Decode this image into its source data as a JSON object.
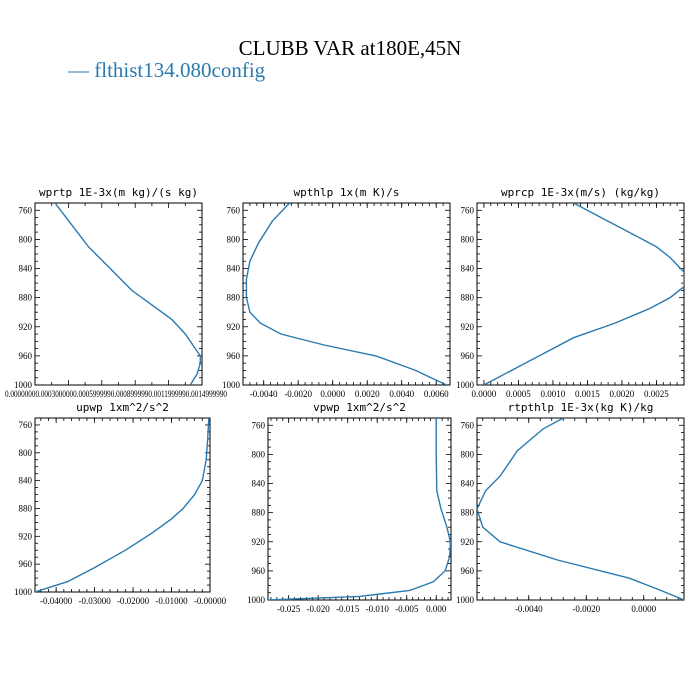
{
  "figure": {
    "title": "CLUBB VAR at180E,45N",
    "legend": {
      "dash": "—",
      "label": "flthist134.080config",
      "color": "#2a7ab0"
    }
  },
  "chart_data": [
    {
      "type": "line",
      "title": "wprtp  1E-3x(m kg)/(s kg)",
      "xlim": [
        0,
        9.99999e-07
      ],
      "ylim": [
        1000,
        750
      ],
      "y_reversed": true,
      "xticks": [],
      "xtick_labels": [],
      "xtick_label_text": "0.00000000.0003000000.0005999990.0008999990.0011999990.0014999990",
      "yticks": [
        760,
        800,
        840,
        880,
        920,
        960,
        1000
      ],
      "series": [
        {
          "color": "#2a7ab0",
          "x": [
            1.2e-07,
            2.2e-07,
            3.2e-07,
            4.5e-07,
            5.8e-07,
            7e-07,
            8.2e-07,
            9e-07,
            9.6e-07,
            9.9e-07,
            9.9e-07,
            9.7e-07,
            9.3e-07
          ],
          "y": [
            750,
            780,
            810,
            840,
            870,
            890,
            910,
            930,
            950,
            960,
            970,
            985,
            1000
          ]
        }
      ]
    },
    {
      "type": "line",
      "title": "wpthlp  1x(m K)/s",
      "xlim": [
        -0.0052,
        0.0068
      ],
      "ylim": [
        1000,
        750
      ],
      "y_reversed": true,
      "xticks": [
        -0.004,
        -0.002,
        0.0,
        0.002,
        0.004,
        0.006
      ],
      "xtick_labels": [
        "-0.0040",
        "-0.0020",
        "0.0000",
        "0.0020",
        "0.0040",
        "0.0060"
      ],
      "yticks": [
        760,
        800,
        840,
        880,
        920,
        960,
        1000
      ],
      "series": [
        {
          "color": "#2a7ab0",
          "x": [
            -0.0025,
            -0.0035,
            -0.0043,
            -0.0048,
            -0.005,
            -0.005,
            -0.0048,
            -0.0042,
            -0.003,
            -0.0005,
            0.0025,
            0.0048,
            0.0066
          ],
          "y": [
            750,
            775,
            805,
            830,
            855,
            880,
            900,
            915,
            930,
            945,
            960,
            980,
            1000
          ]
        }
      ]
    },
    {
      "type": "line",
      "title": "wprcp  1E-3x(m/s) (kg/kg)",
      "xlim": [
        -0.0001,
        0.0029
      ],
      "ylim": [
        1000,
        750
      ],
      "y_reversed": true,
      "xticks": [
        0.0,
        0.0005,
        0.001,
        0.0015,
        0.002,
        0.0025
      ],
      "xtick_labels": [
        "0.0000",
        "0.0005",
        "0.0010",
        "0.0015",
        "0.0020",
        "0.0025"
      ],
      "yticks": [
        760,
        800,
        840,
        880,
        920,
        960,
        1000
      ],
      "series": [
        {
          "color": "#2a7ab0",
          "x": [
            0.0013,
            0.0017,
            0.0021,
            0.0025,
            0.0027,
            0.0029,
            0.0029,
            0.0027,
            0.0024,
            0.0019,
            0.0013,
            0.0008,
            0.0
          ],
          "y": [
            750,
            770,
            790,
            810,
            825,
            845,
            865,
            880,
            895,
            915,
            935,
            960,
            1000
          ]
        }
      ]
    },
    {
      "type": "line",
      "title": "upwp  1xm^2/s^2",
      "xlim": [
        -0.0455,
        -0.0
      ],
      "ylim": [
        1000,
        750
      ],
      "y_reversed": true,
      "xticks": [
        -0.04,
        -0.03,
        -0.02,
        -0.01,
        0.0
      ],
      "xtick_labels": [
        "-0.04000",
        "-0.03000",
        "-0.02000",
        "-0.01000",
        "-0.00000"
      ],
      "yticks": [
        760,
        800,
        840,
        880,
        920,
        960,
        1000
      ],
      "series": [
        {
          "color": "#2a7ab0",
          "x": [
            -0.0003,
            -0.0006,
            -0.001,
            -0.002,
            -0.004,
            -0.007,
            -0.01,
            -0.015,
            -0.022,
            -0.03,
            -0.037,
            -0.0455
          ],
          "y": [
            750,
            780,
            810,
            840,
            860,
            880,
            895,
            915,
            940,
            965,
            985,
            1000
          ]
        }
      ]
    },
    {
      "type": "line",
      "title": "vpwp  1xm^2/s^2",
      "xlim": [
        -0.0285,
        0.0025
      ],
      "ylim": [
        1000,
        750
      ],
      "y_reversed": true,
      "xticks": [
        -0.025,
        -0.02,
        -0.015,
        -0.01,
        -0.005,
        0.0
      ],
      "xtick_labels": [
        "-0.025",
        "-0.020",
        "-0.015",
        "-0.010",
        "-0.005",
        "0.000"
      ],
      "yticks": [
        760,
        800,
        840,
        880,
        920,
        960,
        1000
      ],
      "series": [
        {
          "color": "#2a7ab0",
          "x": [
            0.0,
            0.0,
            0.0001,
            0.0008,
            0.0018,
            0.0024,
            0.0023,
            0.0015,
            -0.0005,
            -0.0045,
            -0.013,
            -0.0285
          ],
          "y": [
            750,
            800,
            850,
            875,
            900,
            920,
            940,
            960,
            975,
            987,
            995,
            1000
          ]
        }
      ]
    },
    {
      "type": "line",
      "title": "rtpthlp  1E-3x(kg K)/kg",
      "xlim": [
        -0.0058,
        0.0014
      ],
      "ylim": [
        1000,
        750
      ],
      "y_reversed": true,
      "xticks": [
        -0.004,
        -0.002,
        0.0
      ],
      "xtick_labels": [
        "-0.0040",
        "-0.0020",
        "0.0000"
      ],
      "yticks": [
        760,
        800,
        840,
        880,
        920,
        960,
        1000
      ],
      "series": [
        {
          "color": "#2a7ab0",
          "x": [
            -0.0028,
            -0.0035,
            -0.0044,
            -0.005,
            -0.0055,
            -0.0058,
            -0.0056,
            -0.005,
            -0.003,
            -0.0005,
            0.0006,
            0.0014
          ],
          "y": [
            750,
            765,
            795,
            830,
            850,
            875,
            900,
            920,
            945,
            970,
            987,
            1000
          ]
        }
      ]
    }
  ]
}
